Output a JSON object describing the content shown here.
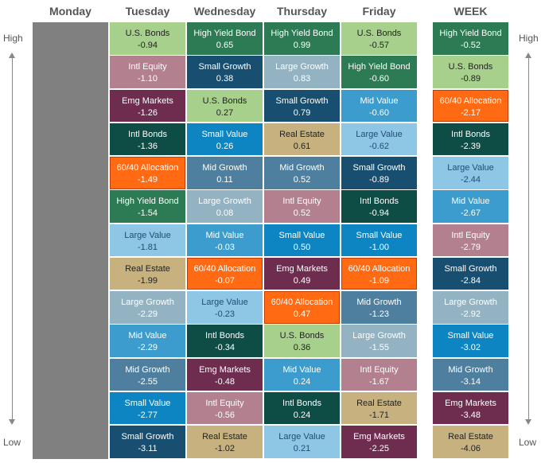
{
  "labels": {
    "high": "High",
    "low": "Low"
  },
  "colors": {
    "U.S. Bonds": {
      "bg": "#a8d08d",
      "fg": "#222222"
    },
    "Intl Equity": {
      "bg": "#b2808f",
      "fg": "#ffffff"
    },
    "Emg Markets": {
      "bg": "#6e2d4e",
      "fg": "#ffffff"
    },
    "Intl Bonds": {
      "bg": "#0e4d45",
      "fg": "#ffffff"
    },
    "60/40 Allocation": {
      "bg": "#ff6a13",
      "fg": "#ffffff"
    },
    "High Yield Bond": {
      "bg": "#2d7b54",
      "fg": "#ffffff"
    },
    "Large Value": {
      "bg": "#8ec6e6",
      "fg": "#1e4e73"
    },
    "Real Estate": {
      "bg": "#c7b27f",
      "fg": "#222222"
    },
    "Large Growth": {
      "bg": "#93b3c3",
      "fg": "#ffffff"
    },
    "Mid Value": {
      "bg": "#3b9ccd",
      "fg": "#ffffff"
    },
    "Mid Growth": {
      "bg": "#4e7f9f",
      "fg": "#ffffff"
    },
    "Small Value": {
      "bg": "#0c85c2",
      "fg": "#ffffff"
    },
    "Small Growth": {
      "bg": "#184e70",
      "fg": "#ffffff"
    }
  },
  "columns": [
    {
      "day": "Monday",
      "cells": []
    },
    {
      "day": "Tuesday",
      "cells": [
        {
          "name": "U.S. Bonds",
          "value": "-0.94"
        },
        {
          "name": "Intl Equity",
          "value": "-1.10"
        },
        {
          "name": "Emg Markets",
          "value": "-1.26"
        },
        {
          "name": "Intl Bonds",
          "value": "-1.36"
        },
        {
          "name": "60/40 Allocation",
          "value": "-1.49"
        },
        {
          "name": "High Yield Bond",
          "value": "-1.54"
        },
        {
          "name": "Large Value",
          "value": "-1.81"
        },
        {
          "name": "Real Estate",
          "value": "-1.99"
        },
        {
          "name": "Large Growth",
          "value": "-2.29"
        },
        {
          "name": "Mid Value",
          "value": "-2.29"
        },
        {
          "name": "Mid Growth",
          "value": "-2.55"
        },
        {
          "name": "Small Value",
          "value": "-2.77"
        },
        {
          "name": "Small Growth",
          "value": "-3.11"
        }
      ]
    },
    {
      "day": "Wednesday",
      "cells": [
        {
          "name": "High Yield Bond",
          "value": "0.65"
        },
        {
          "name": "Small Growth",
          "value": "0.38"
        },
        {
          "name": "U.S. Bonds",
          "value": "0.27"
        },
        {
          "name": "Small Value",
          "value": "0.26"
        },
        {
          "name": "Mid Growth",
          "value": "0.11"
        },
        {
          "name": "Large Growth",
          "value": "0.08"
        },
        {
          "name": "Mid Value",
          "value": "-0.03"
        },
        {
          "name": "60/40 Allocation",
          "value": "-0.07"
        },
        {
          "name": "Large Value",
          "value": "-0.23"
        },
        {
          "name": "Intl Bonds",
          "value": "-0.34"
        },
        {
          "name": "Emg Markets",
          "value": "-0.48"
        },
        {
          "name": "Intl Equity",
          "value": "-0.56"
        },
        {
          "name": "Real Estate",
          "value": "-1.02"
        }
      ]
    },
    {
      "day": "Thursday",
      "cells": [
        {
          "name": "High Yield Bond",
          "value": "0.99"
        },
        {
          "name": "Large Growth",
          "value": "0.83"
        },
        {
          "name": "Small Growth",
          "value": "0.79"
        },
        {
          "name": "Real Estate",
          "value": "0.61"
        },
        {
          "name": "Mid Growth",
          "value": "0.52"
        },
        {
          "name": "Intl Equity",
          "value": "0.52"
        },
        {
          "name": "Small Value",
          "value": "0.50"
        },
        {
          "name": "Emg Markets",
          "value": "0.49"
        },
        {
          "name": "60/40 Allocation",
          "value": "0.47"
        },
        {
          "name": "U.S. Bonds",
          "value": "0.36"
        },
        {
          "name": "Mid Value",
          "value": "0.24"
        },
        {
          "name": "Intl Bonds",
          "value": "0.24"
        },
        {
          "name": "Large Value",
          "value": "0.21"
        }
      ]
    },
    {
      "day": "Friday",
      "cells": [
        {
          "name": "U.S. Bonds",
          "value": "-0.57"
        },
        {
          "name": "High Yield Bond",
          "value": "-0.60"
        },
        {
          "name": "Mid Value",
          "value": "-0.60"
        },
        {
          "name": "Large Value",
          "value": "-0.62"
        },
        {
          "name": "Small Growth",
          "value": "-0.89"
        },
        {
          "name": "Intl Bonds",
          "value": "-0.94"
        },
        {
          "name": "Small Value",
          "value": "-1.00"
        },
        {
          "name": "60/40 Allocation",
          "value": "-1.09"
        },
        {
          "name": "Mid Growth",
          "value": "-1.23"
        },
        {
          "name": "Large Growth",
          "value": "-1.55"
        },
        {
          "name": "Intl Equity",
          "value": "-1.67"
        },
        {
          "name": "Real Estate",
          "value": "-1.71"
        },
        {
          "name": "Emg Markets",
          "value": "-2.25"
        }
      ]
    },
    {
      "day": "WEEK",
      "cells": [
        {
          "name": "High Yield Bond",
          "value": "-0.52"
        },
        {
          "name": "U.S. Bonds",
          "value": "-0.89"
        },
        {
          "name": "60/40 Allocation",
          "value": "-2.17"
        },
        {
          "name": "Intl Bonds",
          "value": "-2.39"
        },
        {
          "name": "Large Value",
          "value": "-2.44"
        },
        {
          "name": "Mid Value",
          "value": "-2.67"
        },
        {
          "name": "Intl Equity",
          "value": "-2.79"
        },
        {
          "name": "Small Growth",
          "value": "-2.84"
        },
        {
          "name": "Large Growth",
          "value": "-2.92"
        },
        {
          "name": "Small Value",
          "value": "-3.02"
        },
        {
          "name": "Mid Growth",
          "value": "-3.14"
        },
        {
          "name": "Emg Markets",
          "value": "-3.48"
        },
        {
          "name": "Real Estate",
          "value": "-4.06"
        }
      ]
    }
  ]
}
